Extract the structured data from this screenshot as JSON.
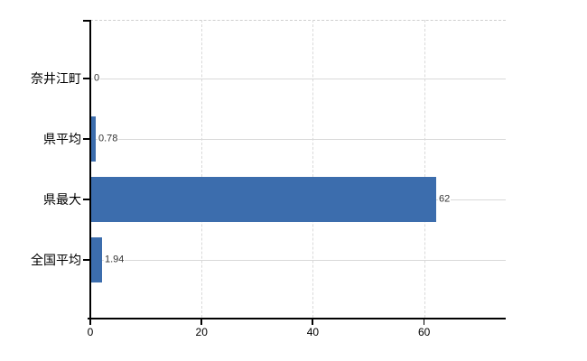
{
  "chart_data": {
    "type": "bar",
    "orientation": "horizontal",
    "title": "",
    "xlabel": "",
    "ylabel": "",
    "categories": [
      "奈井江町",
      "県平均",
      "県最大",
      "全国平均"
    ],
    "values": [
      0,
      0.78,
      62,
      1.94
    ],
    "value_labels": [
      "0",
      "0.78",
      "62",
      "1.94"
    ],
    "x_ticks": [
      0,
      20,
      40,
      60
    ],
    "x_tick_labels": [
      "0",
      "20",
      "40",
      "60"
    ],
    "xlim": [
      0,
      74.7
    ],
    "grid": "on",
    "legend": "none",
    "colors": {
      "bar": "#3c6dad",
      "gridline": "#d9d9d9",
      "axis": "#000000",
      "value_label": "#333333",
      "category_label": "#000000"
    }
  }
}
